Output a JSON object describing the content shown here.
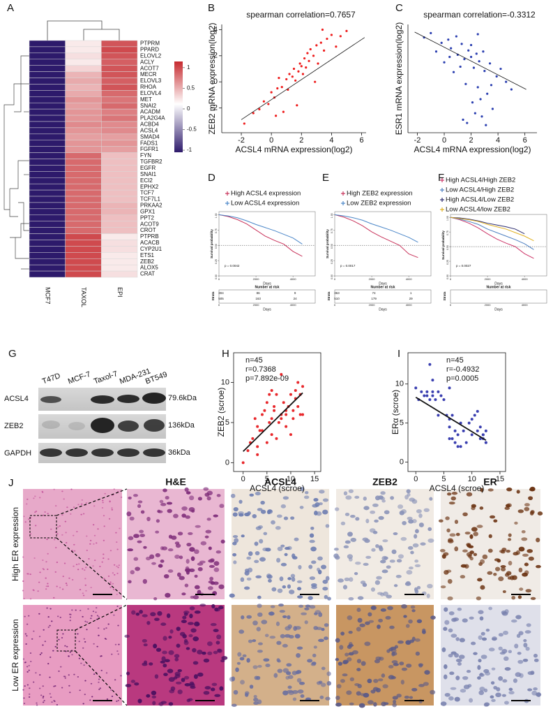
{
  "panel_labels": [
    "A",
    "B",
    "C",
    "D",
    "E",
    "F",
    "G",
    "H",
    "I",
    "J"
  ],
  "chart_data": [
    {
      "type": "heatmap",
      "columns": [
        "MCF7",
        "TAXOL",
        "EPI"
      ],
      "genes": [
        "PTPRM",
        "PPARD",
        "ELOVL2",
        "ACLY",
        "ACOT7",
        "MECR",
        "ELOVL3",
        "RHOA",
        "ELOVL4",
        "MET",
        "SNAI2",
        "ACADM",
        "PLA2G4A",
        "ACBD4",
        "ACSL4",
        "SMAD4",
        "FADS1",
        "FGFR1",
        "FYN",
        "TGFBR2",
        "EGFR",
        "SNAI1",
        "ECI2",
        "EPHX2",
        "TCF7",
        "TCF7L1",
        "PRKAA2",
        "GPX1",
        "PPT2",
        "ACOT9",
        "CROT",
        "PTPRB",
        "ACACB",
        "CYP2U1",
        "ETS1",
        "ZEB2",
        "ALOX5",
        "CRAT"
      ],
      "values": [
        [
          -1,
          0.1,
          0.8
        ],
        [
          -1,
          0.1,
          0.85
        ],
        [
          -1,
          0.15,
          0.8
        ],
        [
          -1,
          0.1,
          0.75
        ],
        [
          -1,
          0.2,
          0.8
        ],
        [
          -1,
          0.35,
          0.8
        ],
        [
          -1,
          0.4,
          0.75
        ],
        [
          -1,
          0.35,
          0.8
        ],
        [
          -1,
          0.4,
          0.7
        ],
        [
          -1,
          0.5,
          0.65
        ],
        [
          -1,
          0.45,
          0.7
        ],
        [
          -1,
          0.5,
          0.6
        ],
        [
          -1,
          0.5,
          0.65
        ],
        [
          -1,
          0.55,
          0.55
        ],
        [
          -1,
          0.5,
          0.55
        ],
        [
          -1,
          0.45,
          0.45
        ],
        [
          -1,
          0.5,
          0.5
        ],
        [
          -1,
          0.5,
          0.45
        ],
        [
          -1,
          0.7,
          0.3
        ],
        [
          -1,
          0.7,
          0.3
        ],
        [
          -1,
          0.7,
          0.3
        ],
        [
          -1,
          0.7,
          0.3
        ],
        [
          -1,
          0.7,
          0.3
        ],
        [
          -1,
          0.7,
          0.3
        ],
        [
          -1,
          0.7,
          0.3
        ],
        [
          -1,
          0.7,
          0.3
        ],
        [
          -1,
          0.7,
          0.35
        ],
        [
          -1,
          0.7,
          0.35
        ],
        [
          -1,
          0.7,
          0.3
        ],
        [
          -1,
          0.7,
          0.3
        ],
        [
          -1,
          0.7,
          0.3
        ],
        [
          -1,
          0.85,
          0.1
        ],
        [
          -1,
          0.85,
          0.15
        ],
        [
          -1,
          0.85,
          0.15
        ],
        [
          -1,
          0.85,
          0.1
        ],
        [
          -1,
          0.85,
          0.1
        ],
        [
          -1,
          0.85,
          0.1
        ],
        [
          -1,
          0.85,
          0.15
        ]
      ],
      "highlighted": [
        14,
        35
      ],
      "highlight_color": "#e0282c",
      "colors": [
        "#2d1a6b",
        "#ffffff",
        "#c62a2f"
      ],
      "clim": [
        -1.05,
        1.15
      ],
      "colorbar_ticks": [
        1,
        0.5,
        0,
        -0.5,
        -1
      ]
    },
    {
      "type": "scatter",
      "title": "spearman correlation=0.7657",
      "xlabel": "ACSL4 mRNA expression(log2)",
      "ylabel": "ZEB2 mRNA expression(log2)",
      "color": "#ee1c1c",
      "frame": "axes",
      "xlim": [
        -3.3,
        6.3
      ],
      "ylim": [
        -3.9,
        4.4
      ],
      "xticks": [
        -2,
        0,
        2,
        4,
        6
      ],
      "yticks": [
        -2,
        0,
        2,
        4
      ],
      "x": [
        -1.8,
        -1.2,
        -0.8,
        -0.5,
        -0.2,
        0,
        0.2,
        0.4,
        0.5,
        0.7,
        0.8,
        1,
        1.1,
        1.2,
        1.4,
        1.5,
        1.6,
        1.8,
        1.9,
        2,
        2.1,
        2.2,
        2.3,
        2.4,
        2.5,
        2.6,
        2.8,
        3,
        3.1,
        3.3,
        3.5,
        3.7,
        4,
        4.3,
        4.6,
        5,
        0.3,
        1.7,
        2.9,
        3.4
      ],
      "y": [
        -3.2,
        -2.4,
        -2.1,
        -1.5,
        -1.7,
        -0.8,
        -1.2,
        -0.5,
        0.3,
        -0.4,
        -2.3,
        0.2,
        -0.6,
        0.6,
        0.4,
        1,
        0.1,
        0.8,
        1.4,
        1.2,
        0.6,
        1.8,
        1.1,
        2.2,
        1.6,
        2.5,
        2,
        2.8,
        1.4,
        3,
        2.4,
        3.3,
        3.6,
        2.7,
        3.5,
        3.9,
        -2.6,
        -1.8,
        0,
        4
      ],
      "fit": {
        "x": [
          -2,
          6.2
        ],
        "y": [
          -2.9,
          3.4
        ]
      }
    },
    {
      "type": "scatter",
      "title": "spearman correlation=-0.3312",
      "xlabel": "ACSL4 mRNA expression(log2)",
      "ylabel": "ESR1 mRNA expression(log2)",
      "color": "#2b3fb0",
      "frame": "axes",
      "xlim": [
        -2.7,
        6.9
      ],
      "ylim": [
        -8,
        2
      ],
      "xticks": [
        -2,
        0,
        2,
        4,
        6
      ],
      "x": [
        -1.5,
        -1,
        -0.6,
        -0.2,
        0,
        0.3,
        0.5,
        0.7,
        0.9,
        1,
        1.2,
        1.3,
        1.5,
        1.6,
        1.8,
        2,
        2.1,
        2.2,
        2.4,
        2.5,
        2.6,
        2.8,
        3,
        3.2,
        3.4,
        3.6,
        3.9,
        4.2,
        4.6,
        5,
        1.7,
        2.3,
        2.7,
        3.1,
        2,
        2.9,
        1.4,
        3.5,
        2.5,
        0.4
      ],
      "y": [
        0.8,
        1.2,
        -0.5,
        0.3,
        -1.5,
        0.6,
        -0.2,
        -2.4,
        0.9,
        -0.8,
        -1.9,
        0.2,
        -1.2,
        -3.5,
        -0.4,
        -1,
        -5.2,
        -2,
        -0.7,
        -3.8,
        -1.4,
        -6.5,
        -2.3,
        -4.4,
        -1.6,
        -5.8,
        -2.8,
        -2.1,
        -3.3,
        -4,
        -7.1,
        -6.2,
        -4.9,
        -7.3,
        0.1,
        -0.5,
        -6.8,
        -3.6,
        1.1,
        -1
      ],
      "fit": {
        "x": [
          -2.2,
          6.1
        ],
        "y": [
          1.3,
          -4
        ]
      }
    },
    {
      "type": "line",
      "ylabel": "Survival probability",
      "xlabel": "Days",
      "annotation": "p = 0.0042",
      "xlim": [
        0,
        5200
      ],
      "ylim": [
        0,
        1.05
      ],
      "xticks": [
        0,
        2000,
        4000
      ],
      "yticks": [
        {
          "value": 0,
          "label": "0.00"
        },
        {
          "value": 0.25,
          "label": "0.25"
        },
        {
          "value": 0.5,
          "label": "0.50"
        },
        {
          "value": 0.75,
          "label": "0.75"
        },
        {
          "value": 1,
          "label": "1.00"
        }
      ],
      "x": [
        0,
        500,
        1000,
        1500,
        2000,
        2500,
        3000,
        3500,
        4000,
        4500
      ],
      "series": [
        {
          "name": "High ACSL4  expression",
          "color": "#c8325a",
          "values": [
            1,
            0.97,
            0.92,
            0.85,
            0.75,
            0.65,
            0.58,
            0.52,
            0.4,
            0.32
          ]
        },
        {
          "name": "Low ACSL4  expression",
          "color": "#4a86c8",
          "values": [
            1,
            0.98,
            0.95,
            0.9,
            0.84,
            0.79,
            0.74,
            0.68,
            0.62,
            0.52
          ]
        }
      ],
      "risk_table": {
        "title": "Number at risk",
        "label": "Strata",
        "rows": [
          [
            304,
            86,
            9
          ],
          [
            505,
            163,
            24
          ]
        ]
      }
    },
    {
      "type": "line",
      "ylabel": "Survival probability",
      "xlabel": "Days",
      "annotation": "p = 0.0017",
      "xlim": [
        0,
        5200
      ],
      "ylim": [
        0,
        1.05
      ],
      "xticks": [
        0,
        2000,
        4000
      ],
      "yticks": [
        {
          "value": 0,
          "label": "0.00"
        },
        {
          "value": 0.25,
          "label": "0.25"
        },
        {
          "value": 0.5,
          "label": "0.50"
        },
        {
          "value": 0.75,
          "label": "0.75"
        },
        {
          "value": 1,
          "label": "1.00"
        }
      ],
      "x": [
        0,
        500,
        1000,
        1500,
        2000,
        2500,
        3000,
        3500,
        4000,
        4500
      ],
      "series": [
        {
          "name": "High ZEB2 expression",
          "color": "#c8325a",
          "values": [
            1,
            0.96,
            0.9,
            0.82,
            0.72,
            0.64,
            0.57,
            0.5,
            0.36,
            0.3
          ]
        },
        {
          "name": "Low ZEB2  expression",
          "color": "#4a86c8",
          "values": [
            1,
            0.98,
            0.95,
            0.91,
            0.85,
            0.8,
            0.75,
            0.69,
            0.63,
            0.55
          ]
        }
      ],
      "risk_table": {
        "title": "Number at risk",
        "label": "Strata",
        "rows": [
          [
            363,
            74,
            1
          ],
          [
            510,
            179,
            29
          ]
        ]
      }
    },
    {
      "type": "line",
      "ylabel": "Survival probability",
      "xlabel": "Days",
      "annotation": "p = 0.0027",
      "xlim": [
        0,
        5200
      ],
      "ylim": [
        0,
        1.05
      ],
      "xticks": [
        0,
        2000,
        4000
      ],
      "yticks": [
        {
          "value": 0,
          "label": "0.00"
        },
        {
          "value": 0.25,
          "label": "0.25"
        },
        {
          "value": 0.5,
          "label": "0.50"
        },
        {
          "value": 0.75,
          "label": "0.75"
        },
        {
          "value": 1,
          "label": "1.00"
        }
      ],
      "x": [
        0,
        500,
        1000,
        1500,
        2000,
        2500,
        3000,
        3500,
        4000,
        4500
      ],
      "series": [
        {
          "name": "High ACSL4/High ZEB2",
          "color": "#cc3366",
          "values": [
            1,
            0.96,
            0.9,
            0.82,
            0.72,
            0.63,
            0.56,
            0.5,
            0.38,
            0.3
          ]
        },
        {
          "name": "Low ACSL4/High ZEB2",
          "color": "#4c7fc0",
          "values": [
            1,
            0.97,
            0.93,
            0.88,
            0.8,
            0.74,
            0.68,
            0.62,
            0.55,
            0.45
          ]
        },
        {
          "name": "High ACSL4/Low ZEB2",
          "color": "#2a2a6e",
          "values": [
            1,
            0.99,
            0.97,
            0.94,
            0.9,
            0.87,
            0.84,
            0.8,
            0.72,
            null
          ]
        },
        {
          "name": "Low ACSL4/low ZEB2",
          "color": "#e0b020",
          "values": [
            1,
            0.98,
            0.96,
            0.93,
            0.88,
            0.84,
            0.8,
            0.74,
            0.68,
            0.6
          ]
        }
      ],
      "risk_table": {
        "title": "Number at risk",
        "label": "Strata"
      }
    },
    {
      "type": "scatter",
      "xlabel": "ACSL4  (scroe)",
      "ylabel": "ZEB2  (scroe)",
      "color": "#e8282c",
      "frame": "box",
      "annotations": [
        "n=45",
        "r=0.7368",
        "p=7.892e-09"
      ],
      "xlim": [
        -2,
        16.3
      ],
      "ylim": [
        -1.1,
        13.7
      ],
      "xticks": [
        0,
        5,
        10,
        15
      ],
      "yticks": [
        0,
        5,
        10
      ],
      "x": [
        0,
        1,
        1.5,
        2,
        2.5,
        3,
        3,
        3.5,
        4,
        4,
        4.5,
        5,
        5,
        5.5,
        6,
        6,
        6.5,
        6.5,
        7,
        7,
        7.5,
        8,
        8,
        8.5,
        9,
        9,
        9.5,
        10,
        10,
        10.5,
        11,
        11,
        11.5,
        11.5,
        12,
        12,
        12,
        12.5,
        12.5,
        6,
        8,
        9,
        3,
        10.5,
        5.5
      ],
      "y": [
        0,
        1.5,
        2.5,
        3,
        5.5,
        2,
        4.5,
        4,
        6,
        4,
        6.5,
        2.5,
        7.5,
        5,
        3.5,
        5.5,
        6.5,
        7,
        8.5,
        3,
        5,
        6,
        5.5,
        7.5,
        4.5,
        6,
        7,
        8.5,
        3.5,
        6.5,
        8,
        9,
        7,
        10,
        8.5,
        8.5,
        6,
        9.5,
        6,
        9,
        11,
        6.5,
        1,
        5.5,
        8.5
      ],
      "fit": {
        "x": [
          0,
          12.5
        ],
        "y": [
          1.4,
          8.7
        ]
      }
    },
    {
      "type": "scatter",
      "xlabel": "ACSL4  (scroe)",
      "ylabel": "ERα  (scroe)",
      "color": "#3a3fb0",
      "frame": "box",
      "annotations": [
        "n=45",
        "r=-0.4932",
        "p=0.0005"
      ],
      "xlim": [
        -1.4,
        16
      ],
      "ylim": [
        -1.2,
        14
      ],
      "xticks": [
        0,
        5,
        10,
        15
      ],
      "yticks": [
        0,
        5,
        10
      ],
      "x": [
        0,
        0.5,
        1,
        1.5,
        2,
        2,
        2.5,
        2.5,
        3,
        3,
        3.5,
        4,
        4,
        4.5,
        5,
        5.5,
        6,
        6,
        6,
        6.5,
        6.5,
        7,
        7,
        7.5,
        7.5,
        8,
        8,
        8.5,
        9,
        9.5,
        10,
        10,
        10.5,
        11,
        11,
        11.5,
        11.5,
        12,
        12,
        12,
        12.5,
        12.5,
        12.5,
        3,
        6
      ],
      "y": [
        9.5,
        8,
        9,
        8.5,
        8.5,
        9,
        12.5,
        8,
        9,
        8.5,
        8,
        6,
        9,
        8.5,
        8,
        6,
        9.5,
        5.5,
        3,
        3,
        6,
        2.5,
        4,
        3.5,
        2,
        2,
        5,
        4,
        2.5,
        5,
        5.5,
        3.5,
        6,
        4,
        6.5,
        3,
        4.5,
        3.5,
        3,
        3.5,
        2.5,
        4,
        2.5,
        10.5,
        4.5
      ],
      "fit": {
        "x": [
          0,
          12.5
        ],
        "y": [
          8.3,
          2.8
        ]
      }
    }
  ],
  "western": {
    "lanes": [
      "T47D",
      "MCF-7",
      "Taxol-7",
      "MDA-231",
      "BT549"
    ],
    "proteins": [
      "ACSL4",
      "ZEB2",
      "GAPDH"
    ],
    "sizes": [
      "79.6kDa",
      "136kDa",
      "36kDa"
    ]
  },
  "ihc": {
    "stains": [
      "H&E",
      "ACSL4",
      "ZEB2",
      "ER"
    ],
    "rows": [
      "High ER expression",
      "Low ER expression"
    ]
  }
}
